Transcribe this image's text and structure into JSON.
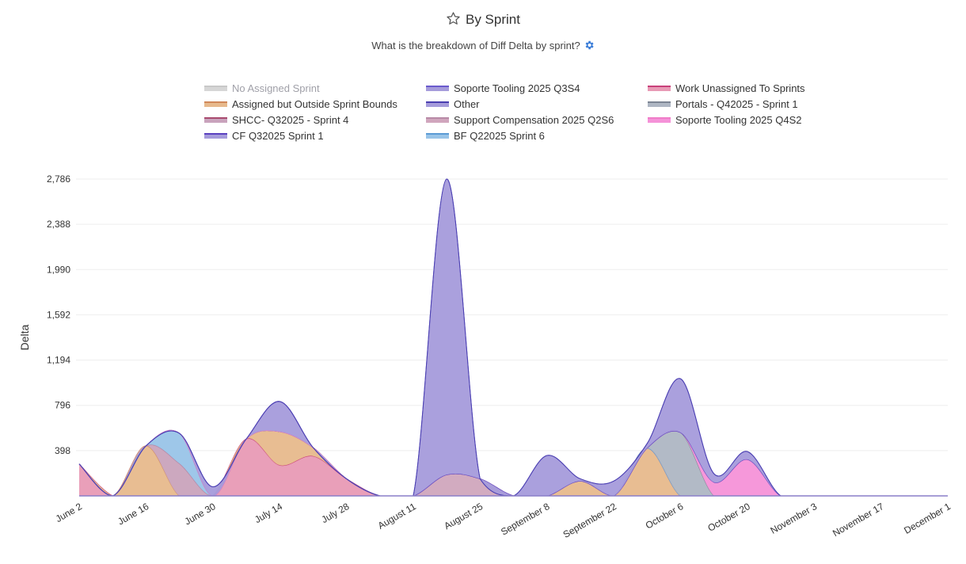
{
  "header": {
    "title": "By Sprint",
    "subtitle": "What is the breakdown of Diff Delta by sprint?",
    "star_icon": "star-outline-icon",
    "gear_icon": "gear-icon",
    "gear_color": "#3b7dd8"
  },
  "chart_data": {
    "type": "area",
    "stacked": true,
    "smooth": true,
    "ylabel": "Delta",
    "xlabel": "",
    "ylim": [
      0,
      2786
    ],
    "yticks": [
      "398",
      "796",
      "1,194",
      "1,592",
      "1,990",
      "2,388",
      "2,786"
    ],
    "ytick_values": [
      398,
      796,
      1194,
      1592,
      1990,
      2388,
      2786
    ],
    "xtick_labels": [
      "June 2",
      "June 16",
      "June 30",
      "July 14",
      "July 28",
      "August 11",
      "August 25",
      "September 8",
      "September 22",
      "October 6",
      "October 20",
      "November 3",
      "November 17",
      "December 1"
    ],
    "x": [
      "Jun 2",
      "Jun 9",
      "Jun 16",
      "Jun 23",
      "Jun 30",
      "Jul 7",
      "Jul 14",
      "Jul 21",
      "Jul 28",
      "Aug 4",
      "Aug 11",
      "Aug 18",
      "Aug 25",
      "Sep 1",
      "Sep 8",
      "Sep 15",
      "Sep 22",
      "Sep 29",
      "Oct 6",
      "Oct 13",
      "Oct 20",
      "Oct 27",
      "Nov 3",
      "Nov 10",
      "Nov 17",
      "Nov 24",
      "Dec 1"
    ],
    "grid": true,
    "legend_position": "top",
    "legend": [
      "No Assigned Sprint",
      "Soporte Tooling 2025 Q3S4",
      "Work Unassigned To Sprints",
      "Assigned but Outside Sprint Bounds",
      "Other",
      "Portals - Q42025 - Sprint 1",
      "SHCC- Q32025 - Sprint 4",
      "Support Compensation 2025 Q2S6",
      "Soporte Tooling 2025 Q4S2",
      "CF Q32025 Sprint 1",
      "BF Q22025 Sprint 6"
    ],
    "series": [
      {
        "name": "No Assigned Sprint",
        "hidden": true,
        "fill": "#d6d6d6",
        "line": "#c8c8c8",
        "values": [
          0,
          0,
          0,
          0,
          0,
          0,
          0,
          0,
          0,
          0,
          0,
          0,
          0,
          0,
          0,
          0,
          0,
          0,
          0,
          0,
          0,
          0,
          0,
          0,
          0,
          0,
          0
        ]
      },
      {
        "name": "Work Unassigned To Sprints",
        "fill": "#e89ab5",
        "line": "#c8407a",
        "values": [
          280,
          0,
          0,
          0,
          0,
          500,
          270,
          350,
          150,
          0,
          0,
          0,
          0,
          0,
          0,
          0,
          0,
          0,
          0,
          0,
          0,
          0,
          0,
          0,
          0,
          0,
          0
        ]
      },
      {
        "name": "Assigned but Outside Sprint Bounds",
        "fill": "#e7b98c",
        "line": "#d0885a",
        "values": [
          0,
          0,
          440,
          0,
          0,
          0,
          295,
          75,
          0,
          0,
          0,
          0,
          0,
          0,
          0,
          130,
          0,
          420,
          0,
          0,
          0,
          0,
          0,
          0,
          0,
          0,
          0
        ]
      },
      {
        "name": "SHCC- Q32025 - Sprint 4",
        "fill": "#c9a3bc",
        "line": "#a84a6e",
        "values": [
          0,
          0,
          0,
          285,
          0,
          0,
          0,
          0,
          0,
          0,
          0,
          0,
          0,
          0,
          0,
          0,
          0,
          0,
          0,
          0,
          0,
          0,
          0,
          0,
          0,
          0,
          0
        ]
      },
      {
        "name": "Support Compensation 2025 Q2S6",
        "fill": "#d0a6bd",
        "line": "#b88aa6",
        "values": [
          0,
          0,
          0,
          0,
          0,
          0,
          0,
          0,
          0,
          0,
          0,
          186,
          150,
          0,
          0,
          0,
          0,
          0,
          0,
          0,
          0,
          0,
          0,
          0,
          0,
          0,
          0
        ]
      },
      {
        "name": "BF Q22025 Sprint 6",
        "fill": "#99c4e8",
        "line": "#5b9bd5",
        "values": [
          0,
          0,
          0,
          265,
          0,
          0,
          0,
          0,
          0,
          0,
          0,
          0,
          0,
          0,
          0,
          0,
          0,
          0,
          0,
          0,
          0,
          0,
          0,
          0,
          0,
          0,
          0
        ]
      },
      {
        "name": "Portals - Q42025 - Sprint 1",
        "fill": "#aeb6c3",
        "line": "#7d8594",
        "values": [
          0,
          0,
          0,
          0,
          0,
          0,
          0,
          0,
          0,
          0,
          0,
          0,
          0,
          0,
          0,
          0,
          0,
          0,
          557,
          0,
          0,
          0,
          0,
          0,
          0,
          0,
          0
        ]
      },
      {
        "name": "Soporte Tooling 2025 Q4S2",
        "fill": "#f592d8",
        "line": "#f07cc8",
        "values": [
          0,
          0,
          0,
          0,
          0,
          0,
          0,
          0,
          0,
          0,
          0,
          0,
          0,
          0,
          0,
          0,
          0,
          0,
          0,
          120,
          320,
          0,
          0,
          0,
          0,
          0,
          0
        ]
      },
      {
        "name": "CF Q32025 Sprint 1",
        "fill": "#a59bdb",
        "line": "#5a40c0",
        "values": [
          0,
          0,
          0,
          0,
          80,
          0,
          265,
          0,
          0,
          0,
          0,
          0,
          0,
          0,
          0,
          0,
          0,
          0,
          0,
          0,
          0,
          0,
          0,
          0,
          0,
          0,
          0
        ]
      },
      {
        "name": "Soporte Tooling 2025 Q3S4",
        "fill": "#a59bdb",
        "line": "#6a5acd",
        "values": [
          0,
          0,
          0,
          0,
          0,
          0,
          0,
          0,
          0,
          0,
          0,
          2600,
          0,
          0,
          355,
          20,
          130,
          40,
          473,
          75,
          70,
          0,
          0,
          0,
          0,
          0,
          0
        ]
      },
      {
        "name": "Other",
        "fill": "#a59bdb",
        "line": "#4a3fb0",
        "values": [
          0,
          0,
          0,
          0,
          0,
          0,
          0,
          0,
          0,
          0,
          0,
          0,
          0,
          0,
          0,
          0,
          0,
          0,
          0,
          0,
          0,
          0,
          0,
          0,
          0,
          0,
          0
        ]
      }
    ]
  }
}
